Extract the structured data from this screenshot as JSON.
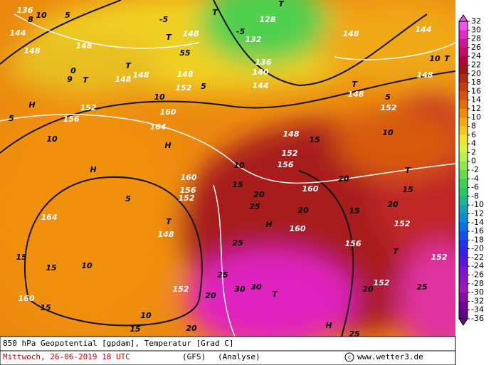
{
  "map": {
    "labels": [
      "136",
      "10",
      "5",
      "144",
      "148",
      "148",
      "0",
      "9",
      "T",
      "T",
      "148",
      "148",
      "T",
      "55",
      "148",
      "148",
      "-5",
      "T",
      "128",
      "-5",
      "132",
      "T",
      "136",
      "140",
      "144",
      "5",
      "152",
      "10",
      "160",
      "H",
      "156",
      "152",
      "5",
      "10",
      "164",
      "H",
      "H",
      "10",
      "152",
      "156",
      "148",
      "15",
      "10",
      "T",
      "148",
      "5",
      "152",
      "144",
      "148",
      "10",
      "T",
      "148",
      "T",
      "15",
      "20",
      "160",
      "20",
      "15",
      "25",
      "H",
      "20",
      "15",
      "160",
      "156",
      "20",
      "152",
      "T",
      "152",
      "25",
      "20",
      "152",
      "160",
      "156",
      "152",
      "5",
      "148",
      "T",
      "164",
      "15",
      "15",
      "10",
      "152",
      "160",
      "15",
      "10",
      "15",
      "20",
      "20",
      "30",
      "30",
      "25",
      "25",
      "T",
      "H",
      "25",
      "8"
    ]
  },
  "colorbar": {
    "ticks": [
      32,
      30,
      28,
      26,
      24,
      22,
      20,
      18,
      16,
      14,
      12,
      10,
      8,
      6,
      4,
      2,
      0,
      -2,
      -4,
      -6,
      -8,
      -10,
      -12,
      -14,
      -16,
      -18,
      -20,
      -22,
      -24,
      -26,
      -28,
      -30,
      -32,
      -34,
      -36
    ],
    "colors": [
      "#f050f0",
      "#e628c8",
      "#d21496",
      "#c80a64",
      "#b4003c",
      "#a01414",
      "#b42814",
      "#c83c0a",
      "#dc500a",
      "#e66e0a",
      "#f08c0a",
      "#f5aa14",
      "#f5c81e",
      "#f0e628",
      "#dcf03c",
      "#b4f050",
      "#8ce650",
      "#64dc50",
      "#3cd250",
      "#28c864",
      "#1eb48c",
      "#14a0b4",
      "#0a8cdc",
      "#0a6ef0",
      "#1450f0",
      "#1e32f0",
      "#3c1ee6",
      "#5a14dc",
      "#7814d2",
      "#8c14c8",
      "#a014be",
      "#8c0aaa",
      "#78009a",
      "#640088"
    ]
  },
  "footer": {
    "title": "850 hPa Geopotential [gpdam], Temperatur [Grad C]",
    "date": "Mittwoch, 26-06-2019  18 UTC",
    "model": "(GFS)",
    "run": "(Analyse)",
    "source": "www.wetter3.de"
  }
}
